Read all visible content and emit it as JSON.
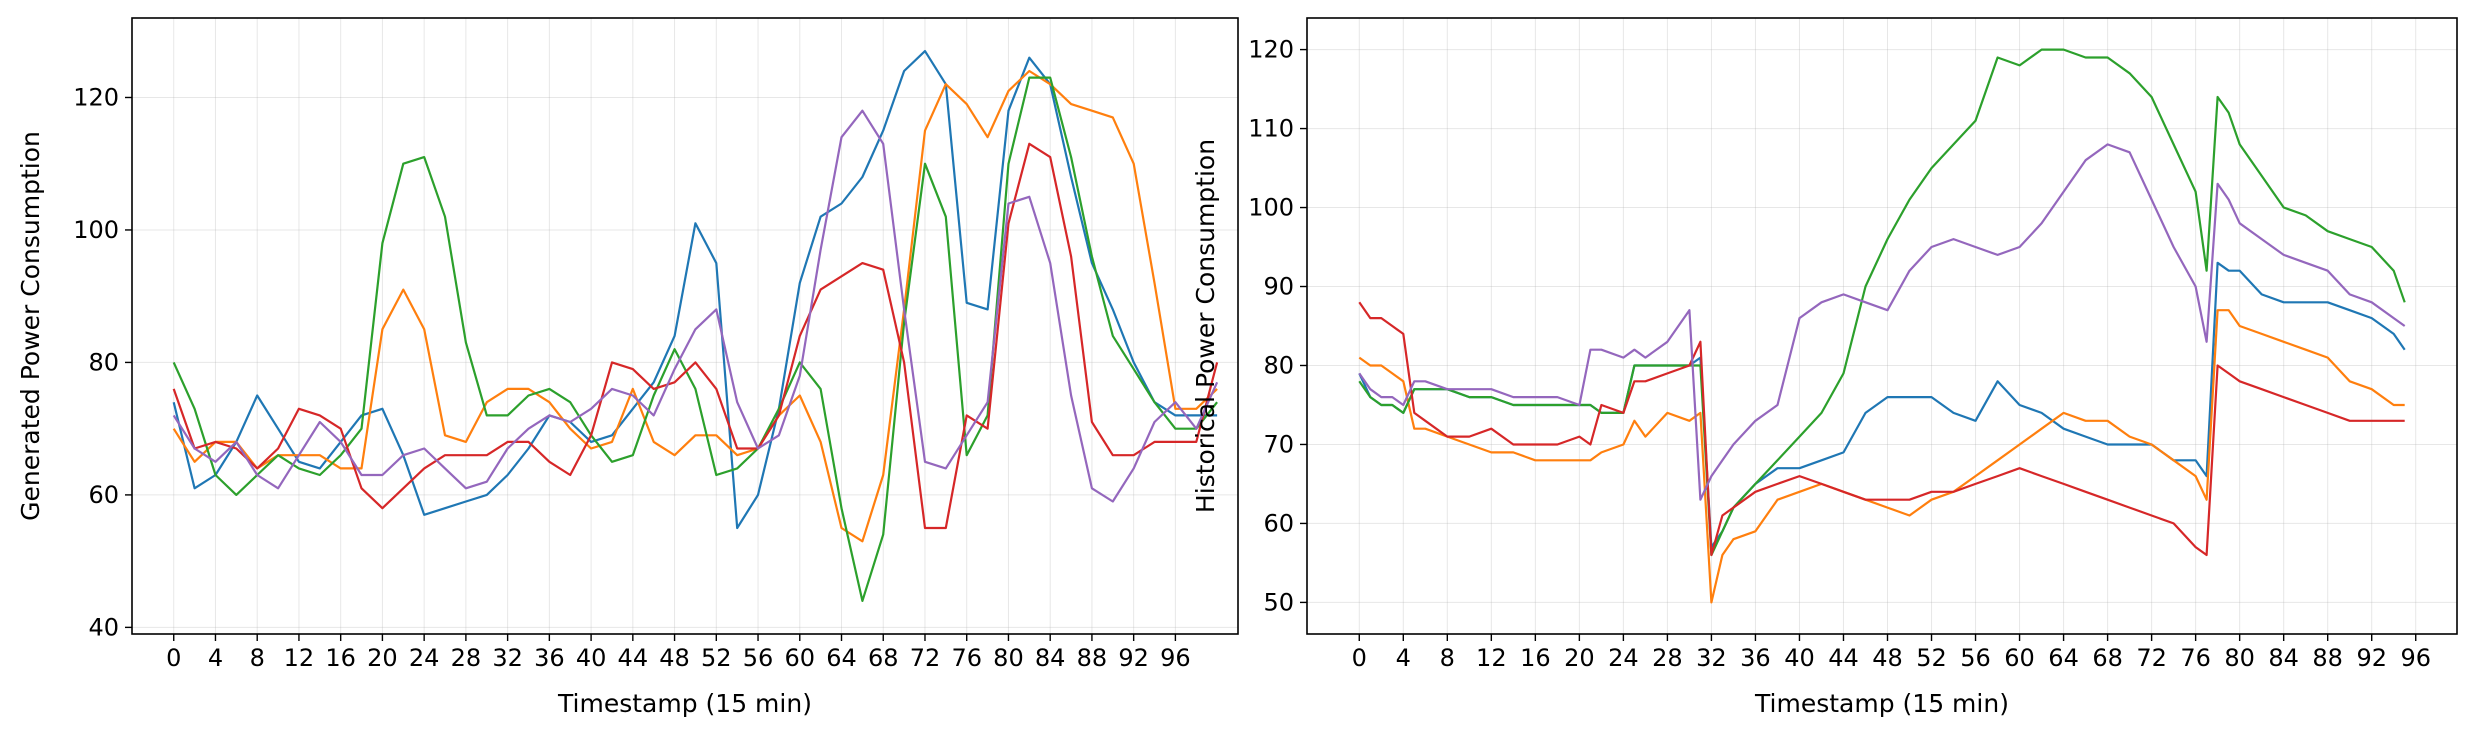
{
  "chart_data": [
    {
      "type": "line",
      "title": "",
      "xlabel": "Timestamp (15 min)",
      "ylabel": "Generated Power Consumption",
      "xlim": [
        -4,
        102
      ],
      "ylim": [
        39,
        132
      ],
      "xticks": [
        0,
        4,
        8,
        12,
        16,
        20,
        24,
        28,
        32,
        36,
        40,
        44,
        48,
        52,
        56,
        60,
        64,
        68,
        72,
        76,
        80,
        84,
        88,
        92,
        96
      ],
      "yticks": [
        40,
        60,
        80,
        100,
        120
      ],
      "grid": true,
      "x": [
        0,
        2,
        4,
        6,
        8,
        10,
        12,
        14,
        16,
        18,
        20,
        22,
        24,
        26,
        28,
        30,
        32,
        34,
        36,
        38,
        40,
        42,
        44,
        46,
        48,
        50,
        52,
        54,
        56,
        58,
        60,
        62,
        64,
        66,
        68,
        70,
        72,
        74,
        76,
        78,
        80,
        82,
        84,
        86,
        88,
        90,
        92,
        94,
        96,
        98,
        100
      ],
      "series": [
        {
          "color": "#1f77b4",
          "values": [
            74,
            61,
            63,
            68,
            75,
            70,
            65,
            64,
            68,
            72,
            73,
            66,
            57,
            58,
            59,
            60,
            63,
            67,
            72,
            71,
            68,
            69,
            73,
            77,
            84,
            101,
            95,
            55,
            60,
            73,
            92,
            102,
            104,
            108,
            115,
            124,
            127,
            122,
            89,
            88,
            118,
            126,
            122,
            108,
            95,
            88,
            80,
            74,
            72,
            72,
            72
          ]
        },
        {
          "color": "#ff7f0e",
          "values": [
            70,
            65,
            68,
            68,
            64,
            66,
            66,
            66,
            64,
            64,
            85,
            91,
            85,
            69,
            68,
            74,
            76,
            76,
            74,
            70,
            67,
            68,
            76,
            68,
            66,
            69,
            69,
            66,
            67,
            72,
            75,
            68,
            55,
            53,
            63,
            88,
            115,
            122,
            119,
            114,
            121,
            124,
            122,
            119,
            118,
            117,
            110,
            92,
            73,
            73,
            76
          ]
        },
        {
          "color": "#2ca02c",
          "values": [
            80,
            73,
            63,
            60,
            63,
            66,
            64,
            63,
            66,
            70,
            98,
            110,
            111,
            102,
            83,
            72,
            72,
            75,
            76,
            74,
            69,
            65,
            66,
            75,
            82,
            76,
            63,
            64,
            67,
            73,
            80,
            76,
            58,
            44,
            54,
            86,
            110,
            102,
            66,
            72,
            110,
            123,
            123,
            111,
            96,
            84,
            79,
            74,
            70,
            70,
            74
          ]
        },
        {
          "color": "#d62728",
          "values": [
            76,
            67,
            68,
            67,
            64,
            67,
            73,
            72,
            70,
            61,
            58,
            61,
            64,
            66,
            66,
            66,
            68,
            68,
            65,
            63,
            69,
            80,
            79,
            76,
            77,
            80,
            76,
            67,
            67,
            72,
            84,
            91,
            93,
            95,
            94,
            80,
            55,
            55,
            72,
            70,
            101,
            113,
            111,
            96,
            71,
            66,
            66,
            68,
            68,
            68,
            80
          ]
        },
        {
          "color": "#9467bd",
          "values": [
            72,
            67,
            65,
            68,
            63,
            61,
            66,
            71,
            68,
            63,
            63,
            66,
            67,
            64,
            61,
            62,
            67,
            70,
            72,
            71,
            73,
            76,
            75,
            72,
            79,
            85,
            88,
            74,
            67,
            69,
            78,
            97,
            114,
            118,
            113,
            88,
            65,
            64,
            69,
            74,
            104,
            105,
            95,
            75,
            61,
            59,
            64,
            71,
            74,
            70,
            77
          ]
        }
      ]
    },
    {
      "type": "line",
      "title": "",
      "xlabel": "Timestamp (15 min)",
      "ylabel": "Historical Power Consumption",
      "xlim": [
        -4.75,
        99.75
      ],
      "ylim": [
        46,
        124
      ],
      "xticks": [
        0,
        4,
        8,
        12,
        16,
        20,
        24,
        28,
        32,
        36,
        40,
        44,
        48,
        52,
        56,
        60,
        64,
        68,
        72,
        76,
        80,
        84,
        88,
        92,
        96
      ],
      "yticks": [
        50,
        60,
        70,
        80,
        90,
        100,
        110,
        120
      ],
      "grid": true,
      "x": [
        0,
        1,
        2,
        3,
        4,
        5,
        6,
        8,
        10,
        12,
        14,
        16,
        18,
        20,
        21,
        22,
        24,
        25,
        26,
        28,
        30,
        31,
        32,
        33,
        34,
        36,
        38,
        40,
        42,
        44,
        46,
        48,
        50,
        52,
        54,
        56,
        58,
        60,
        62,
        64,
        66,
        68,
        70,
        72,
        74,
        76,
        77,
        78,
        79,
        80,
        82,
        84,
        86,
        88,
        90,
        92,
        94,
        95
      ],
      "series": [
        {
          "color": "#1f77b4",
          "values": [
            79,
            76,
            75,
            75,
            74,
            77,
            77,
            77,
            76,
            76,
            75,
            75,
            75,
            75,
            75,
            74,
            74,
            80,
            80,
            80,
            80,
            81,
            57,
            59,
            62,
            65,
            67,
            67,
            68,
            69,
            74,
            76,
            76,
            76,
            74,
            73,
            78,
            75,
            74,
            72,
            71,
            70,
            70,
            70,
            68,
            68,
            66,
            93,
            92,
            92,
            89,
            88,
            88,
            88,
            87,
            86,
            84,
            82
          ]
        },
        {
          "color": "#ff7f0e",
          "values": [
            81,
            80,
            80,
            79,
            78,
            72,
            72,
            71,
            70,
            69,
            69,
            68,
            68,
            68,
            68,
            69,
            70,
            73,
            71,
            74,
            73,
            74,
            50,
            56,
            58,
            59,
            63,
            64,
            65,
            64,
            63,
            62,
            61,
            63,
            64,
            66,
            68,
            70,
            72,
            74,
            73,
            73,
            71,
            70,
            68,
            66,
            63,
            87,
            87,
            85,
            84,
            83,
            82,
            81,
            78,
            77,
            75,
            75
          ]
        },
        {
          "color": "#2ca02c",
          "values": [
            78,
            76,
            75,
            75,
            74,
            77,
            77,
            77,
            76,
            76,
            75,
            75,
            75,
            75,
            75,
            74,
            74,
            80,
            80,
            80,
            80,
            80,
            56,
            59,
            62,
            65,
            68,
            71,
            74,
            79,
            90,
            96,
            101,
            105,
            108,
            111,
            119,
            118,
            120,
            120,
            119,
            119,
            117,
            114,
            108,
            102,
            92,
            114,
            112,
            108,
            104,
            100,
            99,
            97,
            96,
            95,
            92,
            88
          ]
        },
        {
          "color": "#d62728",
          "values": [
            88,
            86,
            86,
            85,
            84,
            74,
            73,
            71,
            71,
            72,
            70,
            70,
            70,
            71,
            70,
            75,
            74,
            78,
            78,
            79,
            80,
            83,
            56,
            61,
            62,
            64,
            65,
            66,
            65,
            64,
            63,
            63,
            63,
            64,
            64,
            65,
            66,
            67,
            66,
            65,
            64,
            63,
            62,
            61,
            60,
            57,
            56,
            80,
            79,
            78,
            77,
            76,
            75,
            74,
            73,
            73,
            73,
            73
          ]
        },
        {
          "color": "#9467bd",
          "values": [
            79,
            77,
            76,
            76,
            75,
            78,
            78,
            77,
            77,
            77,
            76,
            76,
            76,
            75,
            82,
            82,
            81,
            82,
            81,
            83,
            87,
            63,
            66,
            68,
            70,
            73,
            75,
            86,
            88,
            89,
            88,
            87,
            92,
            95,
            96,
            95,
            94,
            95,
            98,
            102,
            106,
            108,
            107,
            101,
            95,
            90,
            83,
            103,
            101,
            98,
            96,
            94,
            93,
            92,
            89,
            88,
            86,
            85
          ]
        }
      ]
    }
  ]
}
